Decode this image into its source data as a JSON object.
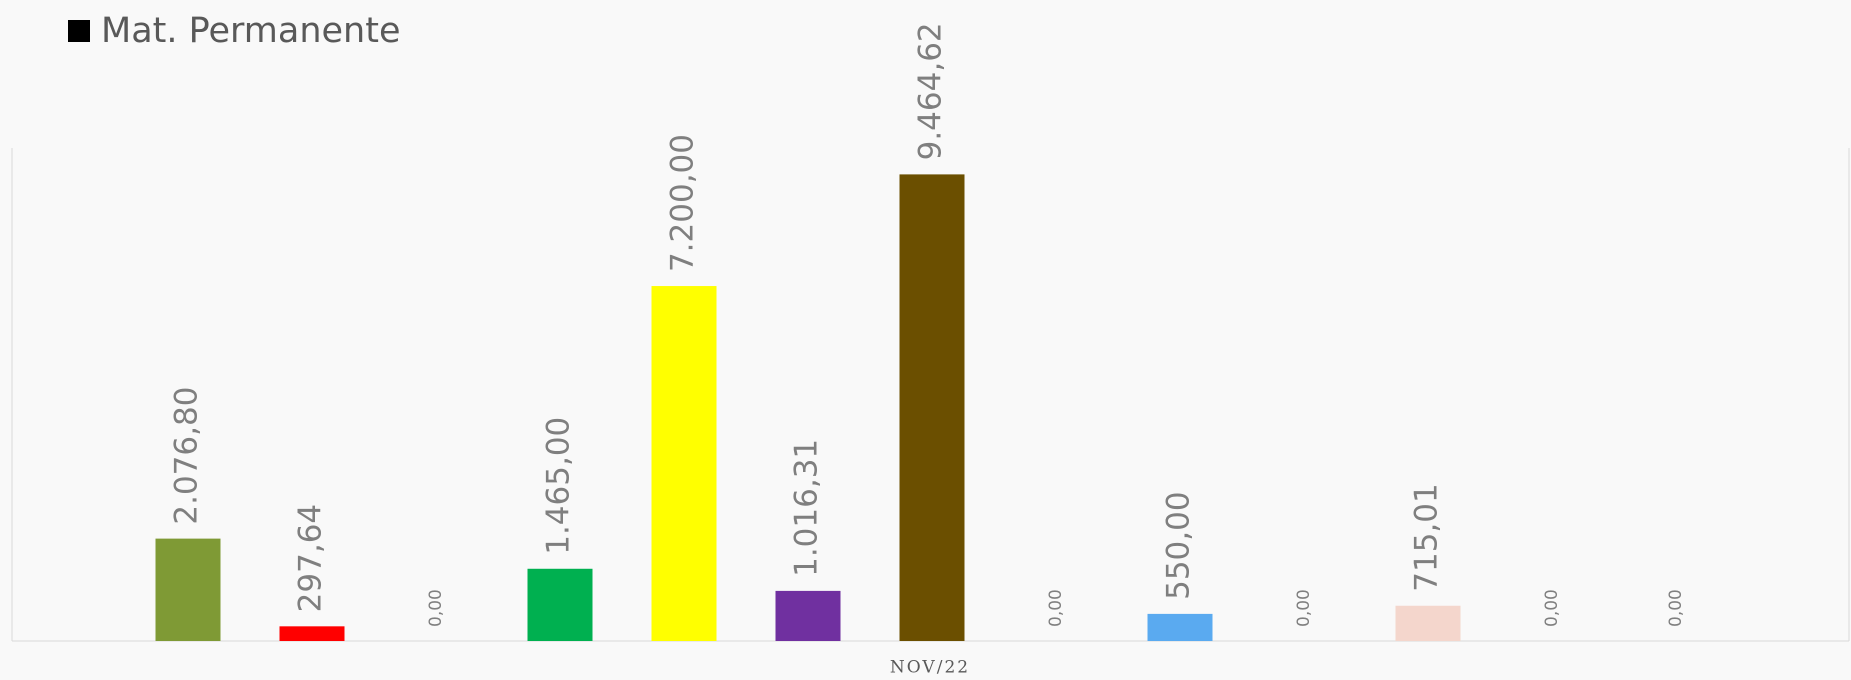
{
  "chart_data": {
    "type": "bar",
    "legend": {
      "name": "Mat. Permanente",
      "color": "#000000"
    },
    "categories": [
      "NOV/22"
    ],
    "ylim": [
      0,
      10000
    ],
    "series": [
      {
        "color": "#7f9a35",
        "values": [
          2076.8
        ],
        "value_labels": [
          "2.076,80"
        ]
      },
      {
        "color": "#ff0000",
        "values": [
          297.64
        ],
        "value_labels": [
          "297,64"
        ]
      },
      {
        "values": [
          0
        ],
        "value_labels": [
          "0,00"
        ]
      },
      {
        "color": "#00b050",
        "values": [
          1465
        ],
        "value_labels": [
          "1.465,00"
        ]
      },
      {
        "color": "#ffff00",
        "values": [
          7200
        ],
        "value_labels": [
          "7.200,00"
        ]
      },
      {
        "color": "#7030a0",
        "values": [
          1016.31
        ],
        "value_labels": [
          "1.016,31"
        ]
      },
      {
        "color": "#6b4f00",
        "values": [
          9464.62
        ],
        "value_labels": [
          "9.464,62"
        ]
      },
      {
        "values": [
          0
        ],
        "value_labels": [
          "0,00"
        ]
      },
      {
        "color": "#5aaaf0",
        "values": [
          550
        ],
        "value_labels": [
          "550,00"
        ]
      },
      {
        "values": [
          0
        ],
        "value_labels": [
          "0,00"
        ]
      },
      {
        "color": "#f4d6cc",
        "values": [
          715.01
        ],
        "value_labels": [
          "715,01"
        ]
      },
      {
        "values": [
          0
        ],
        "value_labels": [
          "0,00"
        ]
      },
      {
        "values": [
          0
        ],
        "value_labels": [
          "0,00"
        ]
      }
    ]
  }
}
